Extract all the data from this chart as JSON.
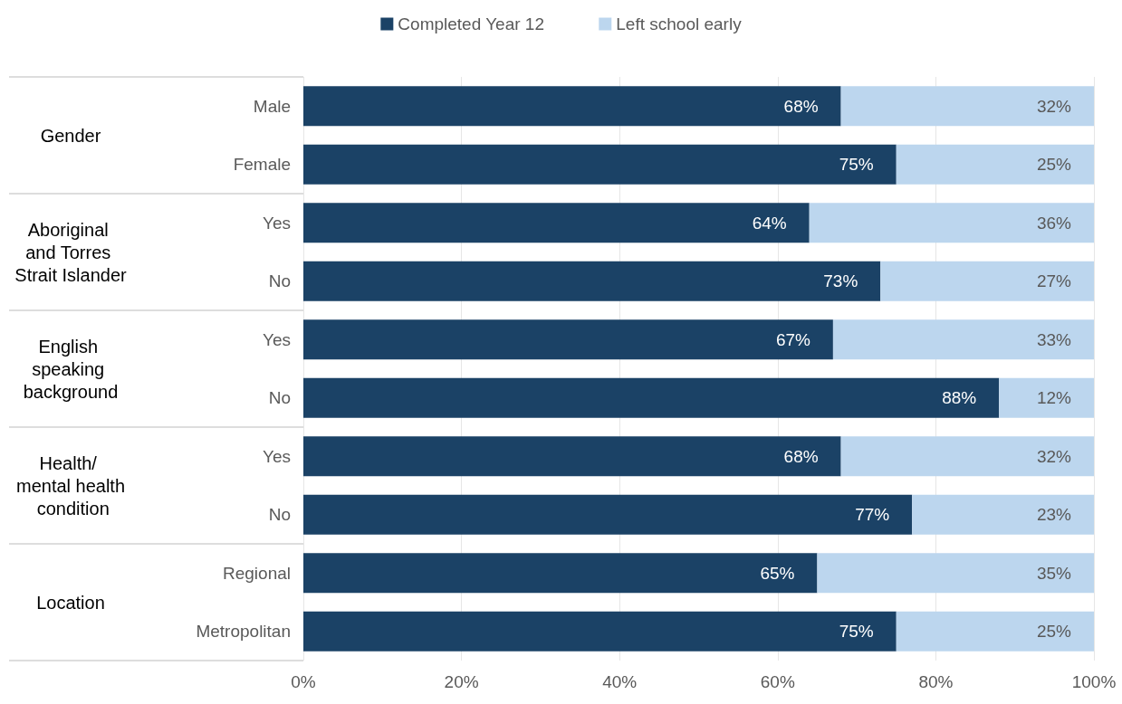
{
  "chart_data": {
    "type": "bar",
    "orientation": "horizontal",
    "stacked": true,
    "categories": [
      "Male",
      "Female",
      "Yes",
      "No",
      "Yes",
      "No",
      "Yes",
      "No",
      "Regional",
      "Metropolitan"
    ],
    "series": [
      {
        "name": "Completed Year 12",
        "color": "#1b4266",
        "values": [
          68,
          75,
          64,
          73,
          67,
          88,
          68,
          77,
          65,
          75
        ],
        "value_labels": [
          "68%",
          "75%",
          "64%",
          "73%",
          "67%",
          "88%",
          "68%",
          "77%",
          "65%",
          "75%"
        ]
      },
      {
        "name": "Left school early",
        "color": "#bcd6ee",
        "values": [
          32,
          25,
          36,
          27,
          33,
          12,
          32,
          23,
          35,
          25
        ],
        "value_labels": [
          "32%",
          "25%",
          "36%",
          "27%",
          "33%",
          "12%",
          "32%",
          "23%",
          "35%",
          "25%"
        ]
      }
    ],
    "xlim": [
      0,
      100
    ],
    "xticks": [
      {
        "value": 0,
        "label": "0%"
      },
      {
        "value": 20,
        "label": "20%"
      },
      {
        "value": 40,
        "label": "40%"
      },
      {
        "value": 60,
        "label": "60%"
      },
      {
        "value": 80,
        "label": "80%"
      },
      {
        "value": 100,
        "label": "100%"
      }
    ],
    "grid": "x",
    "legend": "top",
    "annotations": [
      "Gender",
      "Aboriginal and Torres Strait Islander",
      "English speaking background",
      "Health/ mental health condition",
      "Location"
    ]
  }
}
